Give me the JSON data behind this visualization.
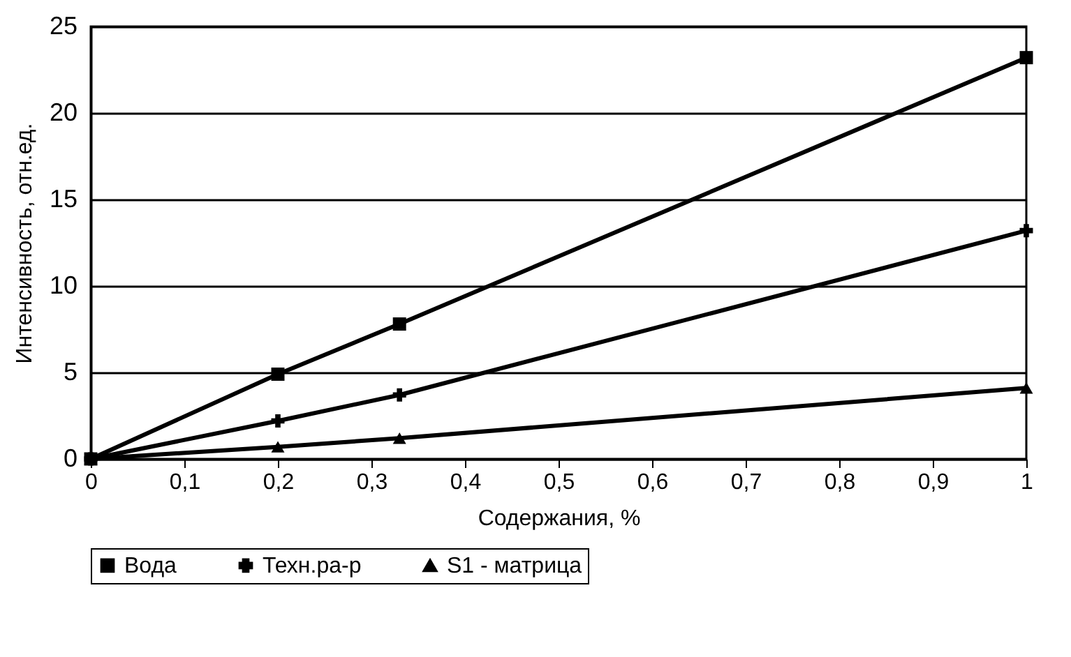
{
  "chart_data": {
    "type": "line",
    "xlabel": "Содержания, %",
    "ylabel": "Интенсивность, отн.ед.",
    "x": [
      0,
      0.2,
      0.33,
      1
    ],
    "series": [
      {
        "name": "Вода",
        "color": "#000000",
        "marker": "square",
        "values": [
          0,
          4.9,
          7.8,
          23.2
        ]
      },
      {
        "name": "Техн.ра-р",
        "color": "#000000",
        "marker": "cross",
        "values": [
          0,
          2.2,
          3.7,
          13.2
        ]
      },
      {
        "name": "S1 - матрица",
        "color": "#000000",
        "marker": "triangle",
        "values": [
          0,
          0.7,
          1.2,
          4.1
        ]
      }
    ],
    "xlim": [
      0,
      1
    ],
    "xticks": [
      0,
      {
        "value": 0.1,
        "label": "0,1"
      },
      {
        "value": 0.2,
        "label": "0,2"
      },
      {
        "value": 0.3,
        "label": "0,3"
      },
      {
        "value": 0.4,
        "label": "0,4"
      },
      {
        "value": 0.5,
        "label": "0,5"
      },
      {
        "value": 0.6,
        "label": "0,6"
      },
      {
        "value": 0.7,
        "label": "0,7"
      },
      {
        "value": 0.8,
        "label": "0,8"
      },
      {
        "value": 0.9,
        "label": "0,9"
      },
      1
    ],
    "ylim": [
      0,
      25
    ],
    "yticks": [
      0,
      5,
      10,
      15,
      20,
      25
    ],
    "grid": "y",
    "legend": "bottom",
    "line_style": "solid"
  }
}
